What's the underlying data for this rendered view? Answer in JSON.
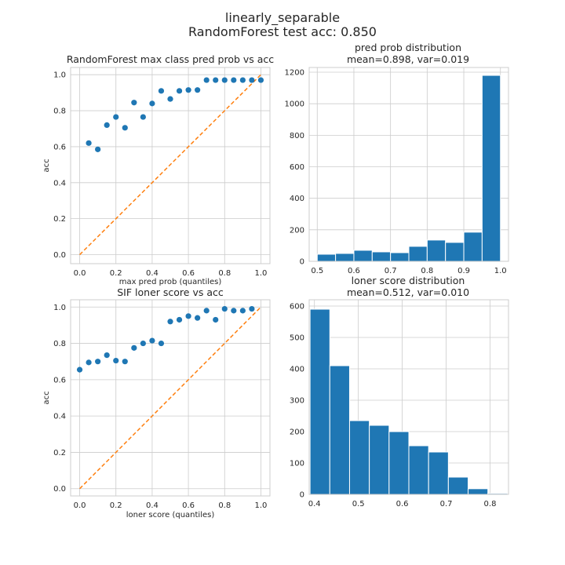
{
  "figure": {
    "title_line1": "linearly_separable",
    "title_line2": "RandomForest test acc: 0.850"
  },
  "chart_data": [
    {
      "type": "scatter",
      "title": "RandomForest max class pred prob vs acc",
      "xlabel": "max pred prob (quantiles)",
      "ylabel": "acc",
      "xlim": [
        -0.05,
        1.05
      ],
      "ylim": [
        -0.05,
        1.04
      ],
      "xticks": [
        0.0,
        0.2,
        0.4,
        0.6,
        0.8,
        1.0
      ],
      "yticks": [
        0.0,
        0.2,
        0.4,
        0.6,
        0.8,
        1.0
      ],
      "grid": true,
      "diagonal": true,
      "x": [
        0.05,
        0.1,
        0.15,
        0.2,
        0.25,
        0.3,
        0.35,
        0.4,
        0.45,
        0.5,
        0.55,
        0.6,
        0.65,
        0.7,
        0.75,
        0.8,
        0.85,
        0.9,
        0.95,
        1.0
      ],
      "y": [
        0.62,
        0.585,
        0.72,
        0.765,
        0.705,
        0.845,
        0.765,
        0.84,
        0.91,
        0.865,
        0.91,
        0.915,
        0.915,
        0.97,
        0.97,
        0.97,
        0.97,
        0.97,
        0.97,
        0.97
      ]
    },
    {
      "type": "bar",
      "title_line1": "pred prob distribution",
      "title_line2": "mean=0.898, var=0.019",
      "xlim": [
        0.478,
        1.022
      ],
      "ylim": [
        0,
        1230
      ],
      "xticks": [
        0.5,
        0.6,
        0.7,
        0.8,
        0.9,
        1.0
      ],
      "yticks": [
        0,
        200,
        400,
        600,
        800,
        1000,
        1200
      ],
      "grid": true,
      "bin_edges": [
        0.5,
        0.55,
        0.6,
        0.65,
        0.7,
        0.75,
        0.8,
        0.85,
        0.9,
        0.95,
        1.0
      ],
      "counts": [
        45,
        50,
        70,
        60,
        55,
        95,
        135,
        120,
        185,
        1180
      ]
    },
    {
      "type": "scatter",
      "title": "SIF loner score vs acc",
      "xlabel": "loner score (quantiles)",
      "ylabel": "acc",
      "xlim": [
        -0.05,
        1.05
      ],
      "ylim": [
        -0.04,
        1.04
      ],
      "xticks": [
        0.0,
        0.2,
        0.4,
        0.6,
        0.8,
        1.0
      ],
      "yticks": [
        0.0,
        0.2,
        0.4,
        0.6,
        0.8,
        1.0
      ],
      "grid": true,
      "diagonal": true,
      "x": [
        0.0,
        0.05,
        0.1,
        0.15,
        0.2,
        0.25,
        0.3,
        0.35,
        0.4,
        0.45,
        0.5,
        0.55,
        0.6,
        0.65,
        0.7,
        0.75,
        0.8,
        0.85,
        0.9,
        0.95
      ],
      "y": [
        0.655,
        0.695,
        0.7,
        0.735,
        0.705,
        0.7,
        0.775,
        0.8,
        0.815,
        0.8,
        0.92,
        0.93,
        0.95,
        0.94,
        0.98,
        0.93,
        0.99,
        0.98,
        0.98,
        0.99
      ]
    },
    {
      "type": "bar",
      "title_line1": "loner score distribution",
      "title_line2": "mean=0.512, var=0.010",
      "xlim": [
        0.388,
        0.842
      ],
      "ylim": [
        0,
        620
      ],
      "xticks": [
        0.4,
        0.5,
        0.6,
        0.7,
        0.8
      ],
      "yticks": [
        0,
        100,
        200,
        300,
        400,
        500,
        600
      ],
      "grid": true,
      "bin_edges": [
        0.39,
        0.435,
        0.48,
        0.525,
        0.57,
        0.615,
        0.66,
        0.705,
        0.75,
        0.795,
        0.84
      ],
      "counts": [
        590,
        410,
        235,
        220,
        200,
        155,
        135,
        55,
        18,
        3
      ]
    }
  ]
}
